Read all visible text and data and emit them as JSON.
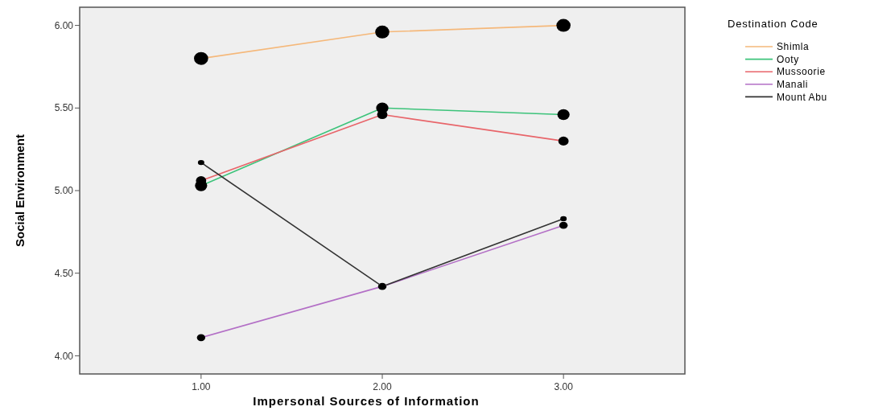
{
  "chart_data": {
    "type": "line",
    "xlabel": "Impersonal Sources of Information",
    "ylabel": "Social Environment",
    "legend_title": "Destination Code",
    "x": [
      1,
      2,
      3
    ],
    "xlim": [
      0.33,
      3.67
    ],
    "xticks": [
      {
        "value": 1,
        "label": "1.00"
      },
      {
        "value": 2,
        "label": "2.00"
      },
      {
        "value": 3,
        "label": "3.00"
      }
    ],
    "ylim": [
      3.89,
      6.11
    ],
    "yticks": [
      {
        "value": 4,
        "label": "4.00"
      },
      {
        "value": 4.5,
        "label": "4.50"
      },
      {
        "value": 5,
        "label": "5.00"
      },
      {
        "value": 5.5,
        "label": "5.50"
      },
      {
        "value": 6,
        "label": "6.00"
      }
    ],
    "series": [
      {
        "name": "Shimla",
        "color": "#f5b87a",
        "values": [
          5.8,
          5.96,
          6.0
        ]
      },
      {
        "name": "Ooty",
        "color": "#3cc37a",
        "values": [
          5.03,
          5.5,
          5.46
        ]
      },
      {
        "name": "Mussoorie",
        "color": "#e8656a",
        "values": [
          5.06,
          5.46,
          5.3
        ]
      },
      {
        "name": "Manali",
        "color": "#b36fc6",
        "values": [
          4.11,
          4.42,
          4.79
        ]
      },
      {
        "name": "Mount Abu",
        "color": "#333333",
        "values": [
          5.17,
          4.42,
          4.83
        ]
      }
    ],
    "marker": "circle",
    "legend": "top right",
    "grid": false
  }
}
